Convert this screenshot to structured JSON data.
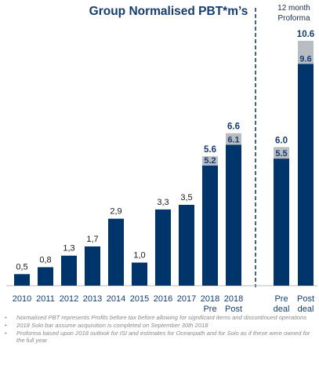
{
  "chart_data": {
    "type": "bar",
    "title": "Group Normalised PBT*m’s",
    "proforma_label": [
      "12 month",
      "Proforma"
    ],
    "colors": {
      "bar": "#00356c",
      "uplift": "#b8bdc2",
      "title": "#163d73",
      "divider": "#163d73"
    },
    "bars": [
      {
        "category": [
          "2010"
        ],
        "value": 0.5,
        "label": "0,5"
      },
      {
        "category": [
          "2011"
        ],
        "value": 0.8,
        "label": "0,8"
      },
      {
        "category": [
          "2012"
        ],
        "value": 1.3,
        "label": "1,3"
      },
      {
        "category": [
          "2013"
        ],
        "value": 1.7,
        "label": "1,7"
      },
      {
        "category": [
          "2014"
        ],
        "value": 2.9,
        "label": "2,9"
      },
      {
        "category": [
          "2015"
        ],
        "value": 1.0,
        "label": "1,0"
      },
      {
        "category": [
          "2016"
        ],
        "value": 3.3,
        "label": "3,3"
      },
      {
        "category": [
          "2017"
        ],
        "value": 3.5,
        "label": "3,5"
      },
      {
        "category": [
          "2018",
          "Pre",
          "deal"
        ],
        "value": 5.2,
        "label": "5.2",
        "total": 5.6,
        "total_label": "5.6"
      },
      {
        "category": [
          "2018",
          "Post",
          "deal"
        ],
        "value": 6.1,
        "label": "6.1",
        "total": 6.6,
        "total_label": "6.6"
      },
      {
        "category": [
          "Pre",
          "deal"
        ],
        "value": 5.5,
        "label": "5.5",
        "total": 6.0,
        "total_label": "6.0",
        "group": "proforma"
      },
      {
        "category": [
          "Post",
          "deal"
        ],
        "value": 9.6,
        "label": "9.6",
        "total": 10.6,
        "total_label": "10.6",
        "group": "proforma"
      }
    ],
    "ylim": [
      0,
      10.6
    ]
  },
  "notes": [
    "Normalised PBT represents Profits before tax before allowing for significant items and discontinued operations",
    "2018 Solo bar assume acquisition is completed on September 30th 2018",
    "Proforma based upon 2018 outlook for ISI and estimates for Oceanpath and for Solo as if these were owned for the full year"
  ],
  "bullet": "•"
}
